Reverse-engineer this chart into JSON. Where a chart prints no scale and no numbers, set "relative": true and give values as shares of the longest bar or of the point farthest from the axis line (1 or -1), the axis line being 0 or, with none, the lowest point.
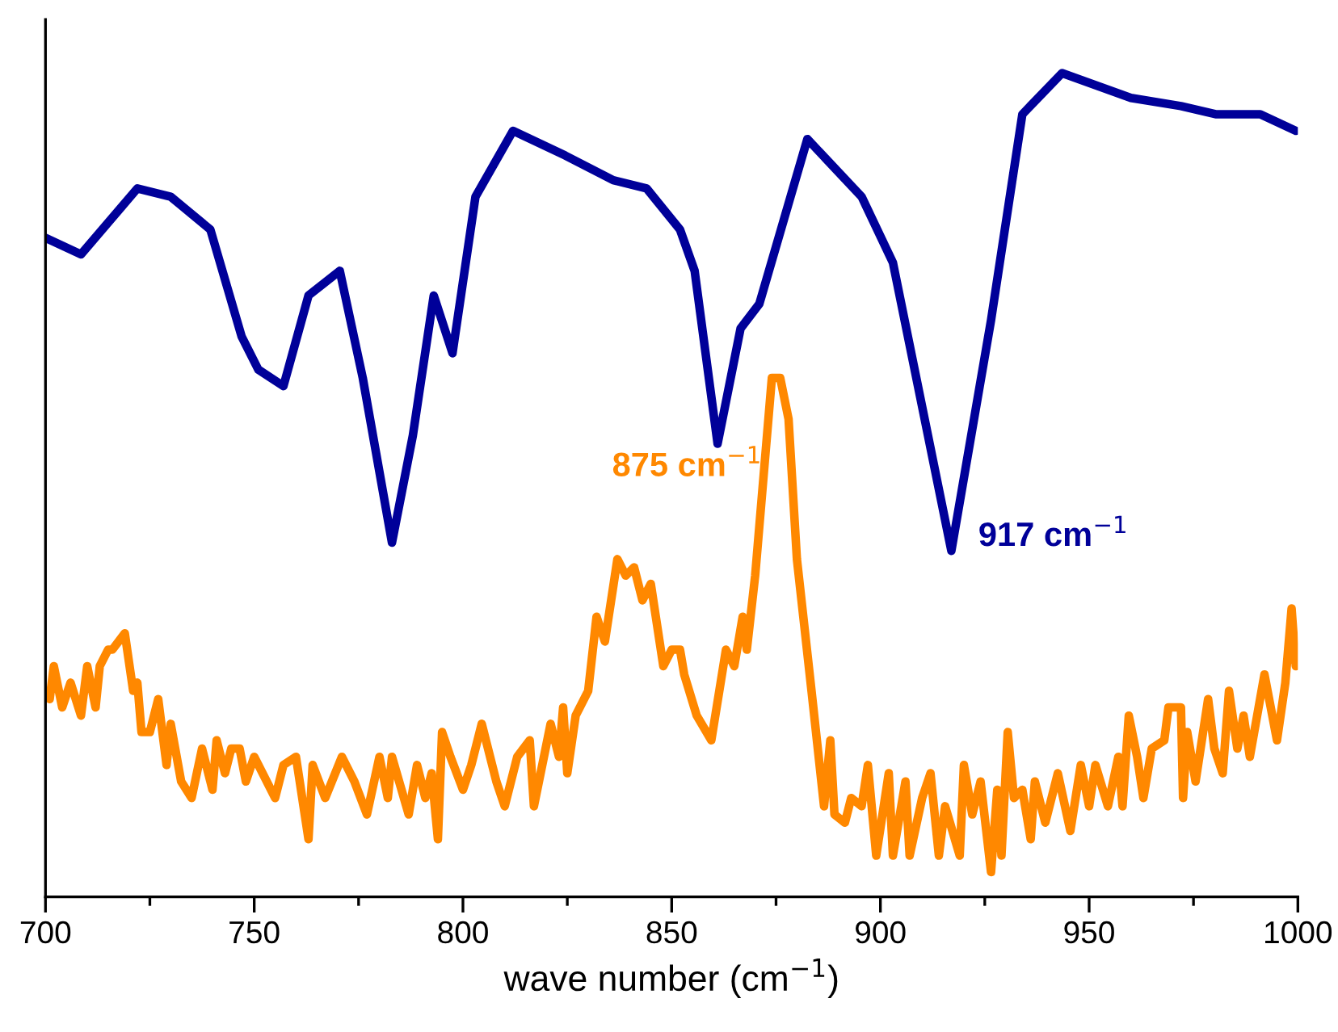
{
  "chart_data": {
    "type": "line",
    "relative": true,
    "xlabel": "wave number (cm$^{−1}$)",
    "xlim": [
      700,
      1000
    ],
    "xticks": [
      700,
      750,
      800,
      850,
      900,
      950,
      1000
    ],
    "tick_labels": "x",
    "grid": false,
    "legend": false,
    "marker": "none",
    "line_style": "solid",
    "annotations": [
      {
        "text": "875 cm$^{−1}$",
        "x": 875,
        "y": 0.63
      },
      {
        "text": "917 cm$^{−1}$",
        "x": 917,
        "y": 0.42
      }
    ],
    "series": [
      {
        "color": "#ff8800",
        "x": [
          701,
          702,
          704,
          706,
          708.5,
          710,
          712,
          713,
          715,
          716,
          719,
          721,
          722,
          723,
          725,
          727,
          729,
          730,
          732.5,
          735,
          737.5,
          740,
          741,
          743,
          744.5,
          746.5,
          748,
          750,
          755,
          757,
          760,
          763,
          764,
          767,
          771,
          774,
          777,
          780,
          782,
          783,
          787,
          789,
          791,
          792.5,
          794,
          795,
          797,
          800,
          802,
          804.5,
          808,
          810,
          813,
          816,
          817,
          821,
          823,
          824,
          825,
          827,
          830,
          832,
          834,
          837,
          839,
          841,
          843,
          845,
          848,
          850,
          852,
          853,
          856,
          859.5,
          863,
          865,
          867,
          868,
          870,
          874,
          876,
          878,
          880,
          883.5,
          886.5,
          888,
          889,
          891.5,
          893,
          895.5,
          897,
          899,
          902,
          903,
          906,
          907,
          910,
          912,
          914,
          915.5,
          919,
          920,
          922,
          924,
          926.5,
          928,
          929,
          930.5,
          932,
          934,
          936,
          937,
          939.5,
          942.5,
          945.5,
          948,
          950,
          951.5,
          954.5,
          957,
          958,
          959.5,
          961.5,
          963,
          965,
          968,
          969,
          972,
          972.5,
          973.5,
          975.5,
          978.5,
          980,
          982,
          983.5,
          985.5,
          987,
          988.5,
          992,
          995,
          997,
          998.5,
          999.5
        ],
        "values": [
          0.24,
          0.28,
          0.23,
          0.26,
          0.22,
          0.28,
          0.23,
          0.28,
          0.3,
          0.3,
          0.32,
          0.25,
          0.26,
          0.2,
          0.2,
          0.24,
          0.16,
          0.21,
          0.14,
          0.12,
          0.18,
          0.13,
          0.19,
          0.15,
          0.18,
          0.18,
          0.14,
          0.17,
          0.12,
          0.16,
          0.17,
          0.07,
          0.16,
          0.12,
          0.17,
          0.14,
          0.1,
          0.17,
          0.12,
          0.17,
          0.1,
          0.16,
          0.12,
          0.15,
          0.07,
          0.2,
          0.17,
          0.13,
          0.16,
          0.21,
          0.14,
          0.11,
          0.17,
          0.19,
          0.11,
          0.21,
          0.17,
          0.23,
          0.15,
          0.22,
          0.25,
          0.34,
          0.31,
          0.41,
          0.39,
          0.4,
          0.36,
          0.38,
          0.28,
          0.3,
          0.3,
          0.27,
          0.22,
          0.19,
          0.3,
          0.28,
          0.34,
          0.3,
          0.39,
          0.63,
          0.63,
          0.58,
          0.41,
          0.25,
          0.11,
          0.19,
          0.1,
          0.09,
          0.12,
          0.11,
          0.16,
          0.05,
          0.15,
          0.05,
          0.14,
          0.05,
          0.12,
          0.15,
          0.05,
          0.11,
          0.05,
          0.16,
          0.1,
          0.14,
          0.03,
          0.13,
          0.05,
          0.2,
          0.12,
          0.13,
          0.07,
          0.14,
          0.09,
          0.15,
          0.08,
          0.16,
          0.11,
          0.16,
          0.11,
          0.17,
          0.11,
          0.22,
          0.17,
          0.12,
          0.18,
          0.19,
          0.23,
          0.23,
          0.12,
          0.2,
          0.14,
          0.24,
          0.18,
          0.15,
          0.25,
          0.18,
          0.22,
          0.17,
          0.27,
          0.19,
          0.26,
          0.35,
          0.28
        ]
      },
      {
        "color": "#000099",
        "x": [
          700,
          708.5,
          722,
          730,
          739.5,
          747,
          751,
          757,
          763,
          770.5,
          776,
          783,
          788,
          793,
          797.5,
          803,
          812,
          824.5,
          836,
          844,
          852,
          855.5,
          861,
          866.5,
          871,
          882.5,
          895.5,
          903,
          917,
          926.5,
          934,
          943.5,
          960,
          972,
          980.5,
          991,
          999.5
        ],
        "values": [
          0.8,
          0.78,
          0.86,
          0.85,
          0.81,
          0.68,
          0.64,
          0.62,
          0.73,
          0.76,
          0.63,
          0.43,
          0.56,
          0.73,
          0.66,
          0.85,
          0.93,
          0.9,
          0.87,
          0.86,
          0.81,
          0.76,
          0.55,
          0.69,
          0.72,
          0.92,
          0.85,
          0.77,
          0.42,
          0.7,
          0.95,
          1.0,
          0.97,
          0.96,
          0.95,
          0.95,
          0.93
        ]
      }
    ]
  }
}
